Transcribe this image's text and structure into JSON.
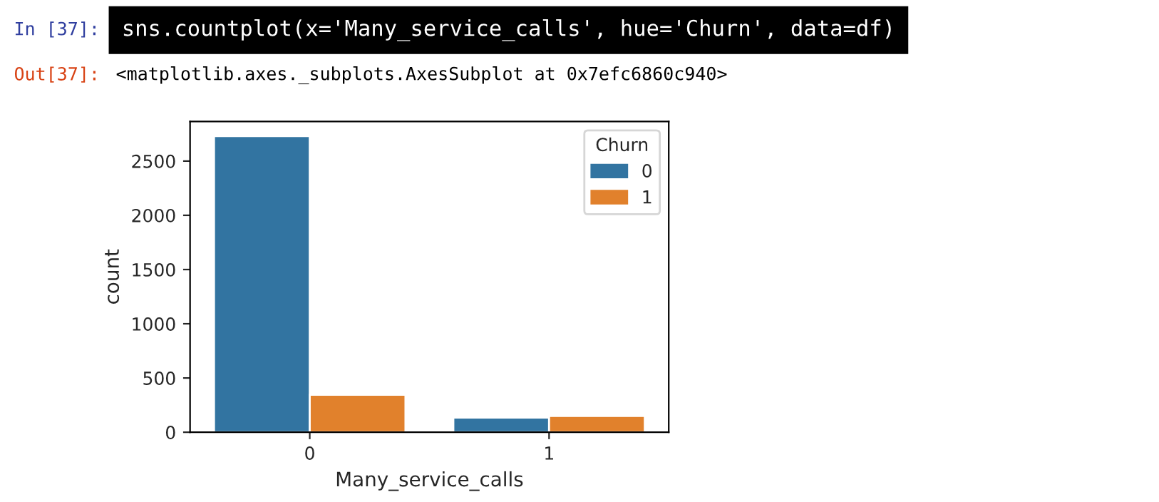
{
  "chart_data": {
    "type": "bar",
    "xlabel": "Many_service_calls",
    "ylabel": "count",
    "legend_title": "Churn",
    "categories": [
      "0",
      "1"
    ],
    "series": [
      {
        "name": "0",
        "color": "#3274a1",
        "values": [
          2730,
          135
        ]
      },
      {
        "name": "1",
        "color": "#e1812c",
        "values": [
          345,
          150
        ]
      }
    ],
    "ylim": [
      0,
      2865
    ],
    "yticks": [
      0,
      500,
      1000,
      1500,
      2000,
      2500
    ],
    "grid": false,
    "legend": "top right",
    "annotations": [
      "In [37]:",
      "sns.countplot(x='Many_service_calls', hue='Churn', data=df)",
      "Out[37]:",
      "<matplotlib.axes._subplots.AxesSubplot at 0x7efc6860c940>"
    ]
  }
}
